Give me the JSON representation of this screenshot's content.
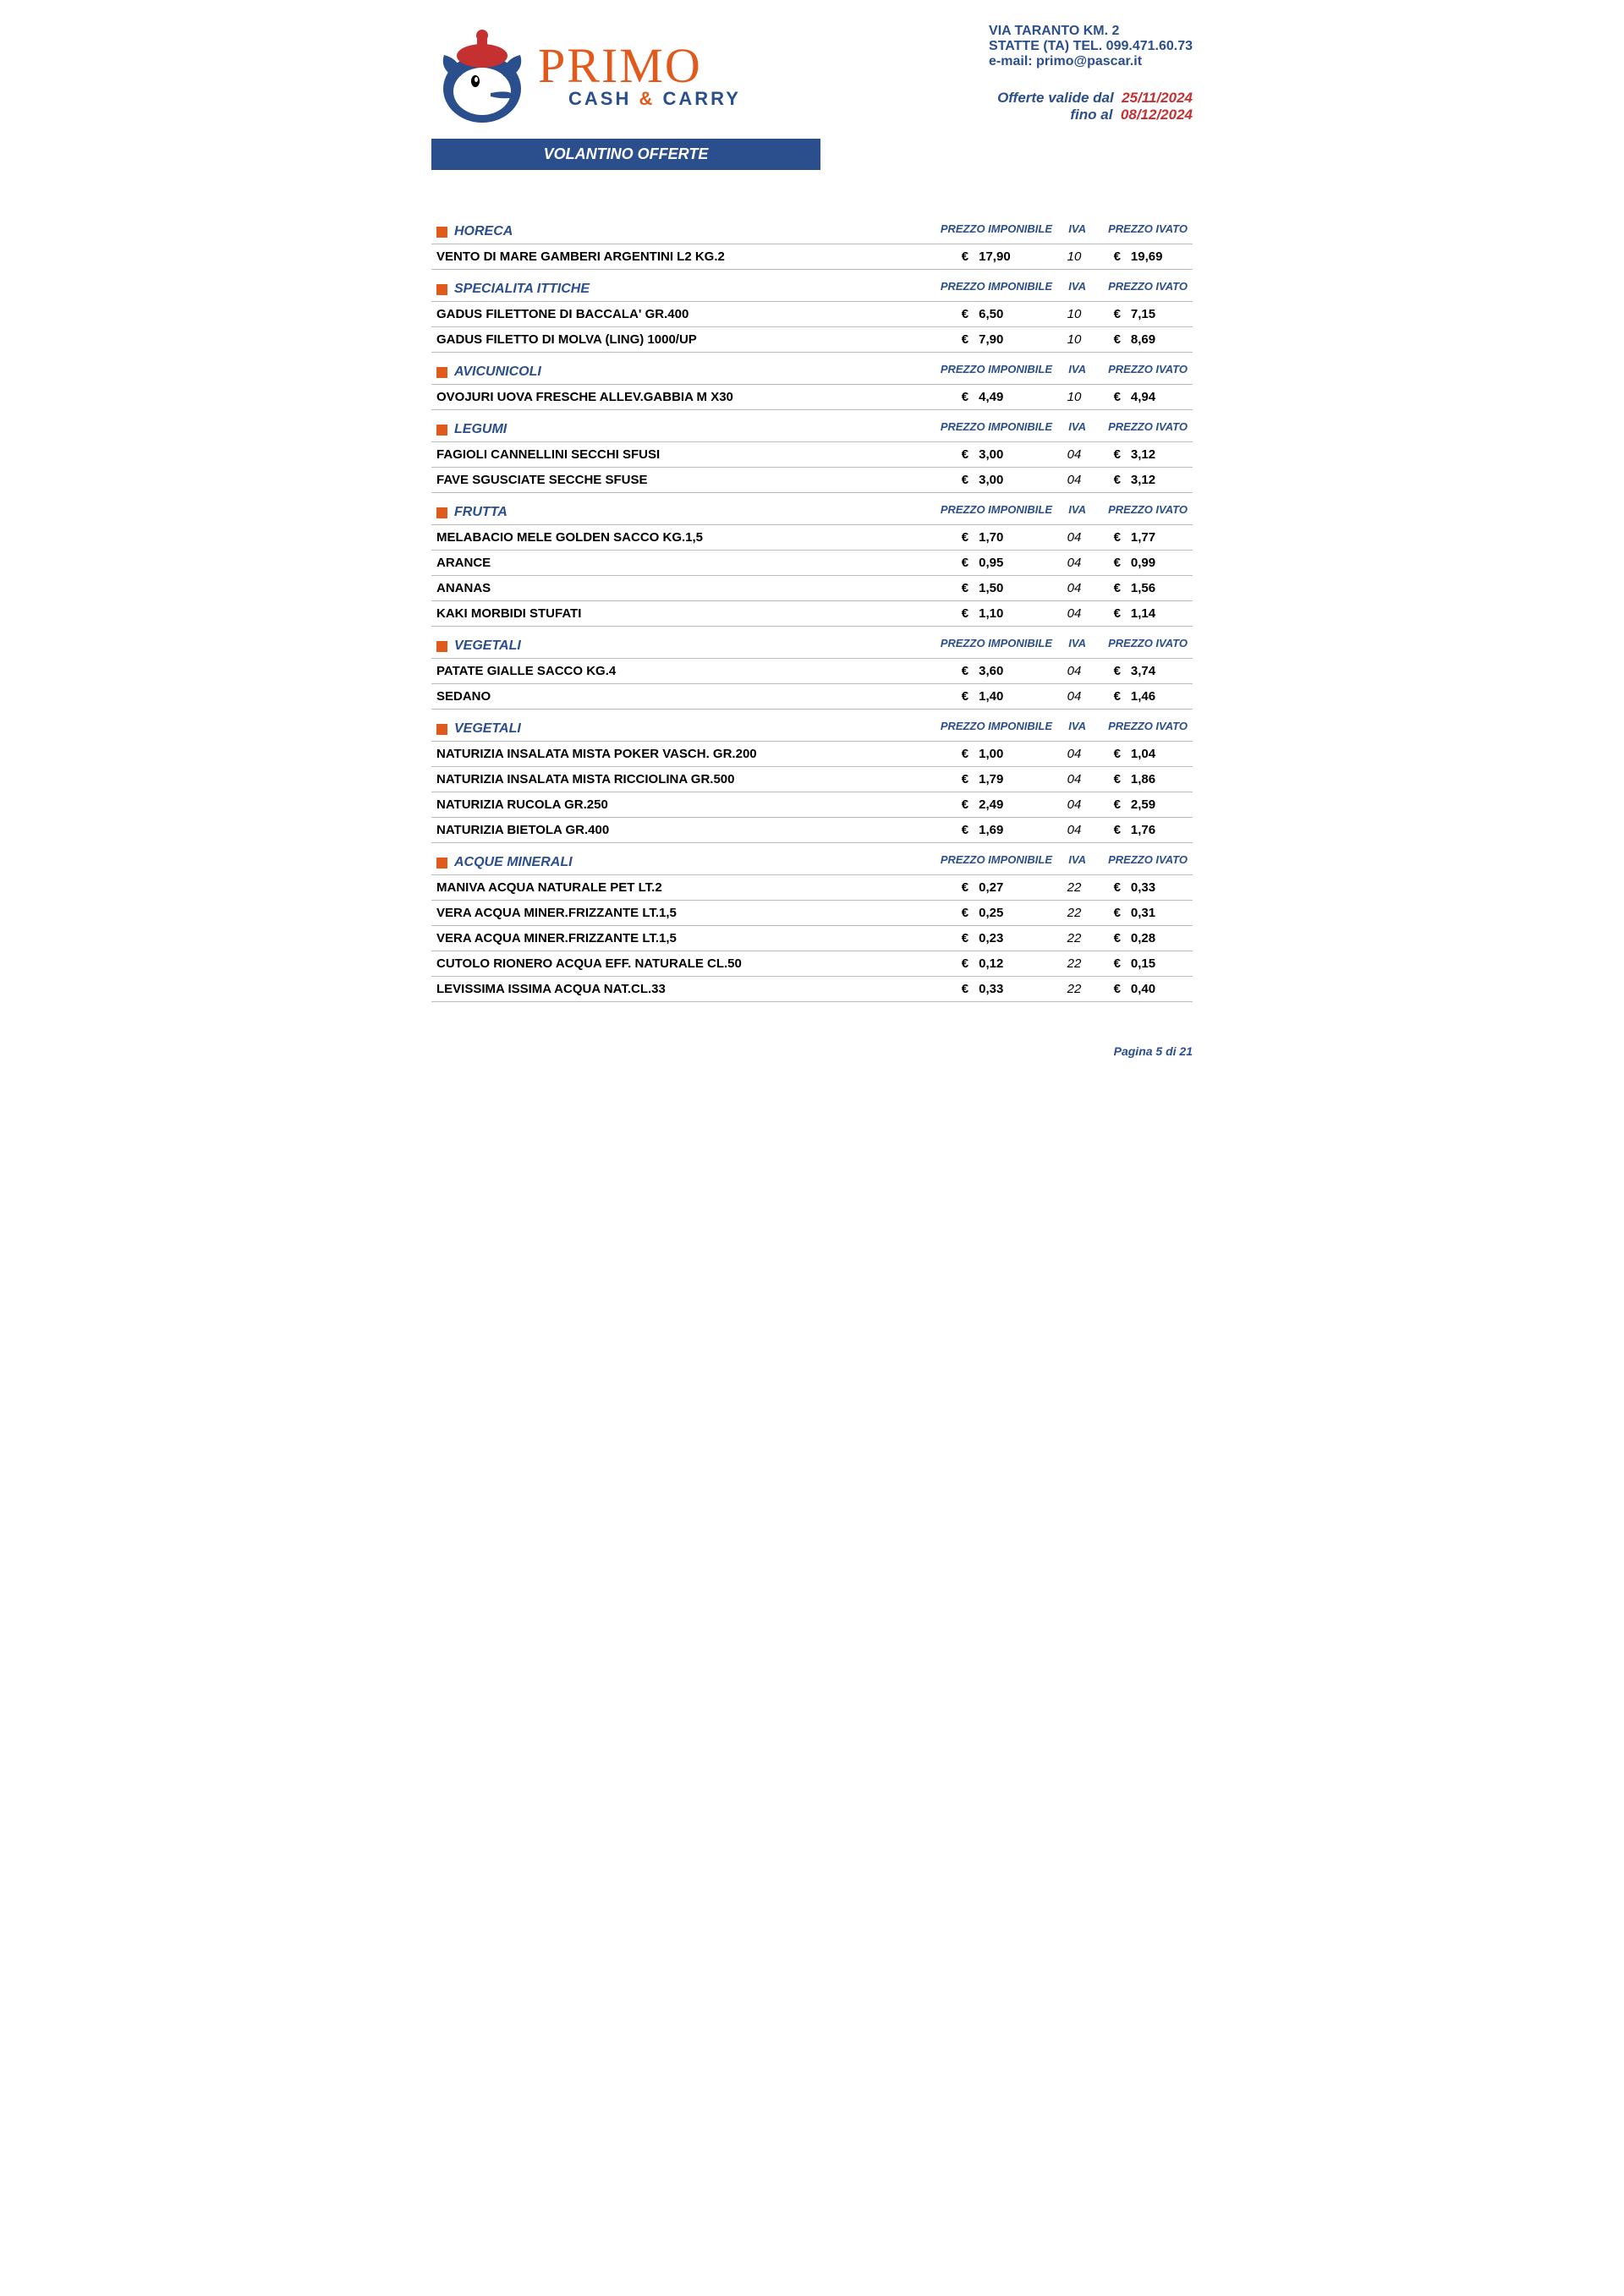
{
  "logo": {
    "title": "PRIMO",
    "sub_pre": "CASH",
    "sub_amp": "&",
    "sub_post": "CARRY"
  },
  "contact": {
    "line1": "VIA TARANTO KM. 2",
    "line2": "STATTE (TA) TEL. 099.471.60.73",
    "line3": "e-mail: primo@pascar.it",
    "offers_pre": "Offerte valide dal",
    "offers_d1": "25/11/2024",
    "offers_mid": "fino al",
    "offers_d2": "08/12/2024"
  },
  "banner": "VOLANTINO OFFERTE",
  "col_headers": {
    "imp": "PREZZO IMPONIBILE",
    "iva": "IVA",
    "ivt": "PREZZO IVATO"
  },
  "euro": "€",
  "sections": [
    {
      "title": "HORECA",
      "rows": [
        {
          "name": "VENTO DI MARE GAMBERI ARGENTINI L2 KG.2",
          "p1": "17,90",
          "iva": "10",
          "p2": "19,69"
        }
      ]
    },
    {
      "title": "SPECIALITA ITTICHE",
      "rows": [
        {
          "name": "GADUS FILETTONE DI BACCALA' GR.400",
          "p1": "6,50",
          "iva": "10",
          "p2": "7,15"
        },
        {
          "name": "GADUS FILETTO DI MOLVA (LING) 1000/UP",
          "p1": "7,90",
          "iva": "10",
          "p2": "8,69"
        }
      ]
    },
    {
      "title": "AVICUNICOLI",
      "rows": [
        {
          "name": "OVOJURI UOVA FRESCHE ALLEV.GABBIA M X30",
          "p1": "4,49",
          "iva": "10",
          "p2": "4,94"
        }
      ]
    },
    {
      "title": "LEGUMI",
      "rows": [
        {
          "name": "FAGIOLI CANNELLINI SECCHI SFUSI",
          "p1": "3,00",
          "iva": "04",
          "p2": "3,12"
        },
        {
          "name": "FAVE SGUSCIATE SECCHE SFUSE",
          "p1": "3,00",
          "iva": "04",
          "p2": "3,12"
        }
      ]
    },
    {
      "title": "FRUTTA",
      "rows": [
        {
          "name": "MELABACIO MELE GOLDEN SACCO KG.1,5",
          "p1": "1,70",
          "iva": "04",
          "p2": "1,77"
        },
        {
          "name": "ARANCE",
          "p1": "0,95",
          "iva": "04",
          "p2": "0,99"
        },
        {
          "name": "ANANAS",
          "p1": "1,50",
          "iva": "04",
          "p2": "1,56"
        },
        {
          "name": "KAKI MORBIDI STUFATI",
          "p1": "1,10",
          "iva": "04",
          "p2": "1,14"
        }
      ]
    },
    {
      "title": "VEGETALI",
      "rows": [
        {
          "name": "PATATE GIALLE SACCO KG.4",
          "p1": "3,60",
          "iva": "04",
          "p2": "3,74"
        },
        {
          "name": "SEDANO",
          "p1": "1,40",
          "iva": "04",
          "p2": "1,46"
        }
      ]
    },
    {
      "title": "VEGETALI",
      "rows": [
        {
          "name": "NATURIZIA INSALATA MISTA POKER VASCH. GR.200",
          "p1": "1,00",
          "iva": "04",
          "p2": "1,04"
        },
        {
          "name": "NATURIZIA INSALATA MISTA RICCIOLINA GR.500",
          "p1": "1,79",
          "iva": "04",
          "p2": "1,86"
        },
        {
          "name": "NATURIZIA RUCOLA GR.250",
          "p1": "2,49",
          "iva": "04",
          "p2": "2,59"
        },
        {
          "name": "NATURIZIA BIETOLA GR.400",
          "p1": "1,69",
          "iva": "04",
          "p2": "1,76"
        }
      ]
    },
    {
      "title": "ACQUE MINERALI",
      "rows": [
        {
          "name": "MANIVA ACQUA NATURALE PET LT.2",
          "p1": "0,27",
          "iva": "22",
          "p2": "0,33"
        },
        {
          "name": "VERA ACQUA MINER.FRIZZANTE LT.1,5",
          "p1": "0,25",
          "iva": "22",
          "p2": "0,31"
        },
        {
          "name": "VERA ACQUA MINER.FRIZZANTE LT.1,5",
          "p1": "0,23",
          "iva": "22",
          "p2": "0,28"
        },
        {
          "name": "CUTOLO RIONERO ACQUA EFF. NATURALE CL.50",
          "p1": "0,12",
          "iva": "22",
          "p2": "0,15"
        },
        {
          "name": "LEVISSIMA ISSIMA ACQUA NAT.CL.33",
          "p1": "0,33",
          "iva": "22",
          "p2": "0,40"
        }
      ]
    }
  ],
  "footer": "Pagina 5 di 21"
}
